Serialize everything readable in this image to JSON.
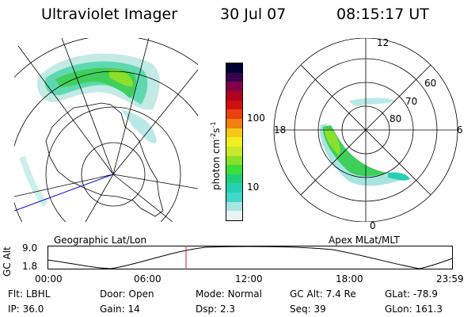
{
  "header": {
    "instrument": "Ultraviolet Imager",
    "date": "30 Jul 07",
    "time": "08:15:17 UT"
  },
  "geo_panel": {
    "label": "Geographic Lat/Lon"
  },
  "mlt_panel": {
    "label": "Apex MLat/MLT",
    "mlt_labels": {
      "top": "12",
      "left": "18",
      "right": "6",
      "bottom": "0"
    },
    "lat_labels": [
      "80",
      "70",
      "60"
    ]
  },
  "colorbar": {
    "unit_base": "photon cm",
    "unit_exp1": "-2",
    "unit_mid": "s",
    "unit_exp2": "-1",
    "ticks": [
      "100",
      "10"
    ],
    "colors": [
      "#e8f4f2",
      "#a8e4e0",
      "#3fd8c8",
      "#27d0b4",
      "#1fcf7a",
      "#3ade3a",
      "#8ae02a",
      "#c8e82a",
      "#f0f020",
      "#f8c818",
      "#f08010",
      "#e84010",
      "#d01010",
      "#b00020",
      "#80004a",
      "#3a0050",
      "#000030"
    ]
  },
  "gc_alt_axis": {
    "label": "GC Alt",
    "ymax": "9.0",
    "ymin": "1.8",
    "x_ticks": [
      "00:00",
      "06:00",
      "12:00",
      "18:00",
      "23:59"
    ],
    "marker_time": "08:15"
  },
  "footer": {
    "row1": [
      {
        "k": "Flt:",
        "v": "LBHL"
      },
      {
        "k": "Door:",
        "v": "Open"
      },
      {
        "k": "Mode:",
        "v": "Normal"
      },
      {
        "k": "GC Alt:",
        "v": "7.4 Re"
      },
      {
        "k": "GLat:",
        "v": "-78.9"
      }
    ],
    "row2": [
      {
        "k": "IP:",
        "v": "36.0"
      },
      {
        "k": "Gain:",
        "v": "14"
      },
      {
        "k": "Dsp:",
        "v": "2.3"
      },
      {
        "k": "Seq:",
        "v": "39"
      },
      {
        "k": "GLon:",
        "v": "161.3"
      }
    ]
  }
}
